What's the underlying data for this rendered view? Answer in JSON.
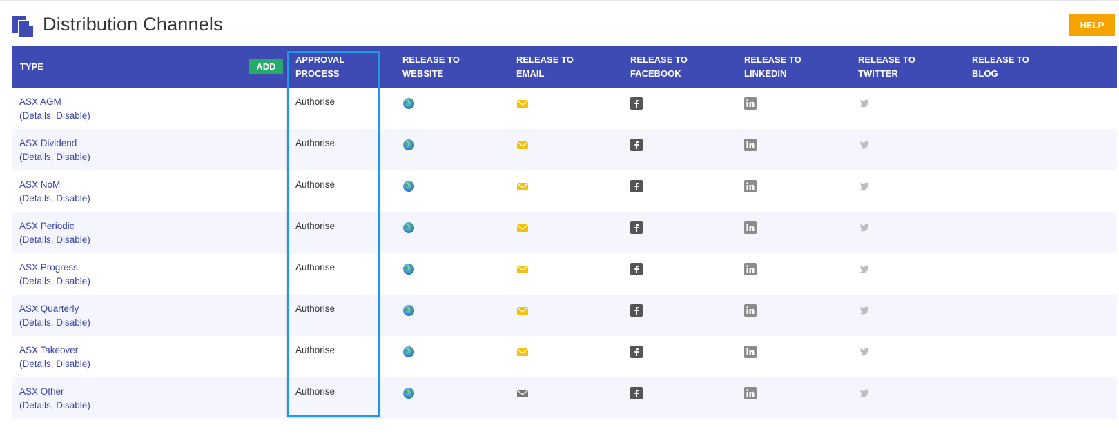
{
  "page": {
    "title": "Distribution Channels",
    "help_label": "HELP"
  },
  "table": {
    "add_label": "ADD",
    "headers": {
      "type": "TYPE",
      "approval_1": "APPROVAL",
      "approval_2": "PROCESS",
      "website_1": "RELEASE TO",
      "website_2": "WEBSITE",
      "email_1": "RELEASE TO",
      "email_2": "EMAIL",
      "facebook_1": "RELEASE TO",
      "facebook_2": "FACEBOOK",
      "linkedin_1": "RELEASE TO",
      "linkedin_2": "LINKEDIN",
      "twitter_1": "RELEASE TO",
      "twitter_2": "TWITTER",
      "blog_1": "RELEASE TO",
      "blog_2": "BLOG"
    },
    "rows": [
      {
        "type": "ASX AGM",
        "details": "Details",
        "disable": "Disable",
        "approval": "Authorise",
        "email_state": "enabled"
      },
      {
        "type": "ASX Dividend",
        "details": "Details",
        "disable": "Disable",
        "approval": "Authorise",
        "email_state": "enabled"
      },
      {
        "type": "ASX NoM",
        "details": "Details",
        "disable": "Disable",
        "approval": "Authorise",
        "email_state": "enabled"
      },
      {
        "type": "ASX Periodic",
        "details": "Details",
        "disable": "Disable",
        "approval": "Authorise",
        "email_state": "enabled"
      },
      {
        "type": "ASX Progress",
        "details": "Details",
        "disable": "Disable",
        "approval": "Authorise",
        "email_state": "enabled"
      },
      {
        "type": "ASX Quarterly",
        "details": "Details",
        "disable": "Disable",
        "approval": "Authorise",
        "email_state": "enabled"
      },
      {
        "type": "ASX Takeover",
        "details": "Details",
        "disable": "Disable",
        "approval": "Authorise",
        "email_state": "enabled"
      },
      {
        "type": "ASX Other",
        "details": "Details",
        "disable": "Disable",
        "approval": "Authorise",
        "email_state": "disabled"
      }
    ]
  },
  "colors": {
    "header_bg": "#3f4bb5",
    "add_button": "#27a96a",
    "help_button": "#f6a200",
    "link": "#3a46a6",
    "highlight": "#1e9be8",
    "email_enabled": "#f4c20d",
    "email_disabled": "#777777"
  },
  "icons": {
    "title": "documents-icon",
    "website": "globe-icon",
    "email": "envelope-icon",
    "facebook": "facebook-icon",
    "linkedin": "linkedin-icon",
    "twitter": "twitter-icon"
  }
}
